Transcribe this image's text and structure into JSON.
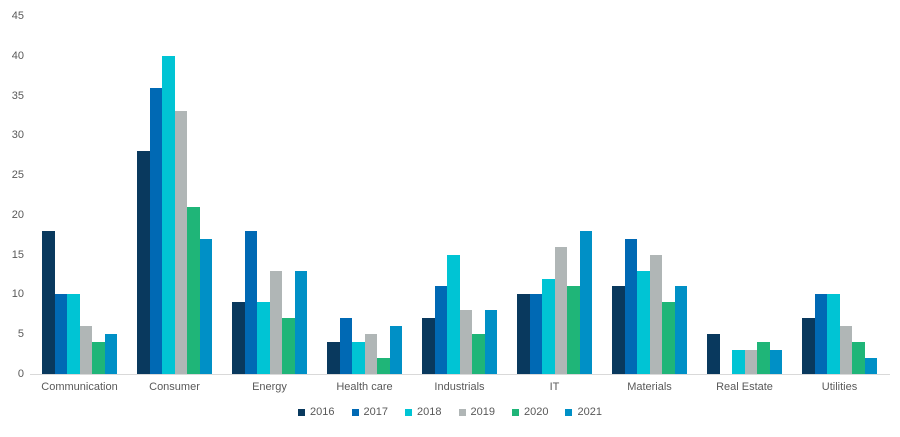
{
  "chart_data": {
    "type": "bar",
    "categories": [
      "Communication",
      "Consumer",
      "Energy",
      "Health care",
      "Industrials",
      "IT",
      "Materials",
      "Real Estate",
      "Utilities"
    ],
    "series": [
      {
        "name": "2016",
        "color": "#09395e",
        "values": [
          18,
          28,
          9,
          4,
          7,
          10,
          11,
          5,
          7
        ]
      },
      {
        "name": "2017",
        "color": "#0069b4",
        "values": [
          10,
          36,
          18,
          7,
          11,
          10,
          17,
          0,
          10
        ]
      },
      {
        "name": "2018",
        "color": "#00c4d4",
        "values": [
          10,
          40,
          9,
          4,
          15,
          12,
          13,
          3,
          10
        ]
      },
      {
        "name": "2019",
        "color": "#b0b6b6",
        "values": [
          6,
          33,
          13,
          5,
          8,
          16,
          15,
          3,
          6
        ]
      },
      {
        "name": "2020",
        "color": "#1fb578",
        "values": [
          4,
          21,
          7,
          2,
          5,
          11,
          9,
          4,
          4
        ]
      },
      {
        "name": "2021",
        "color": "#0090c6",
        "values": [
          5,
          17,
          13,
          6,
          8,
          18,
          11,
          3,
          2
        ]
      }
    ],
    "title": "",
    "xlabel": "",
    "ylabel": "",
    "ylim": [
      0,
      45
    ],
    "yticks": [
      0,
      5,
      10,
      15,
      20,
      25,
      30,
      35,
      40,
      45
    ],
    "grid": false,
    "legend_position": "bottom",
    "legend_labels": [
      "2016",
      "2017",
      "2018",
      "2019",
      "2020",
      "2021"
    ]
  },
  "style": {
    "text_color": "#595959",
    "baseline_color": "#d9d9d9",
    "background": "#ffffff"
  }
}
